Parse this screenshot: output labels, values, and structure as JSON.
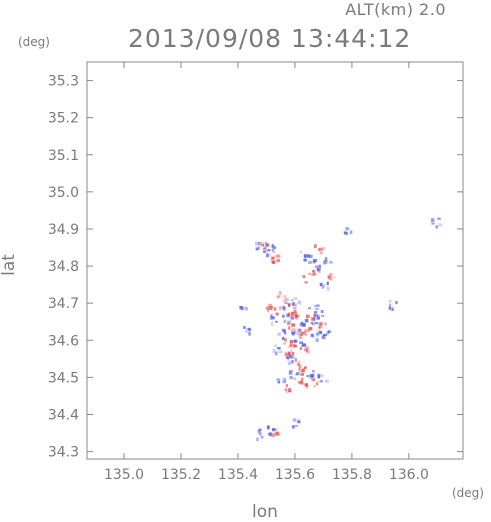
{
  "header": {
    "altitude_label": "ALT(km)  2.0",
    "timestamp": "2013/09/08 13:44:12"
  },
  "axes": {
    "lat_unit": "(deg)",
    "lon_unit": "(deg)",
    "xlabel": "lon",
    "ylabel": "lat"
  },
  "chart_data": {
    "type": "heatmap",
    "xlabel": "lon",
    "ylabel": "lat",
    "xlim": [
      134.87,
      136.19
    ],
    "ylim": [
      34.28,
      35.35
    ],
    "x_ticks": [
      "135.0",
      "135.2",
      "135.4",
      "135.6",
      "135.8",
      "136.0"
    ],
    "y_ticks": [
      "34.3",
      "34.4",
      "34.5",
      "34.6",
      "34.7",
      "34.8",
      "34.9",
      "35.0",
      "35.1",
      "35.2",
      "35.3"
    ],
    "colors": {
      "positive": "#e84a4a",
      "negative": "#4a5ae8",
      "axis": "#888888"
    },
    "points": [
      {
        "x": 135.47,
        "y": 34.855,
        "s": -1
      },
      {
        "x": 135.49,
        "y": 34.86,
        "s": 1
      },
      {
        "x": 135.51,
        "y": 34.85,
        "s": -1
      },
      {
        "x": 135.52,
        "y": 34.83,
        "s": 1
      },
      {
        "x": 135.53,
        "y": 34.82,
        "s": 1
      },
      {
        "x": 135.5,
        "y": 34.84,
        "s": -1
      },
      {
        "x": 135.63,
        "y": 34.83,
        "s": -1
      },
      {
        "x": 135.65,
        "y": 34.82,
        "s": -1
      },
      {
        "x": 135.67,
        "y": 34.79,
        "s": 1
      },
      {
        "x": 135.69,
        "y": 34.8,
        "s": -1
      },
      {
        "x": 135.71,
        "y": 34.82,
        "s": -1
      },
      {
        "x": 135.68,
        "y": 34.85,
        "s": 1
      },
      {
        "x": 135.72,
        "y": 34.77,
        "s": 1
      },
      {
        "x": 135.7,
        "y": 34.75,
        "s": -1
      },
      {
        "x": 135.64,
        "y": 34.77,
        "s": 1
      },
      {
        "x": 135.78,
        "y": 34.9,
        "s": -1
      },
      {
        "x": 135.55,
        "y": 34.72,
        "s": 1
      },
      {
        "x": 135.56,
        "y": 34.7,
        "s": -1
      },
      {
        "x": 135.54,
        "y": 34.68,
        "s": 1
      },
      {
        "x": 135.57,
        "y": 34.66,
        "s": -1
      },
      {
        "x": 135.59,
        "y": 34.67,
        "s": 1
      },
      {
        "x": 135.61,
        "y": 34.66,
        "s": 1
      },
      {
        "x": 135.63,
        "y": 34.65,
        "s": -1
      },
      {
        "x": 135.65,
        "y": 34.66,
        "s": 1
      },
      {
        "x": 135.67,
        "y": 34.65,
        "s": -1
      },
      {
        "x": 135.69,
        "y": 34.64,
        "s": 1
      },
      {
        "x": 135.58,
        "y": 34.64,
        "s": 1
      },
      {
        "x": 135.6,
        "y": 34.63,
        "s": -1
      },
      {
        "x": 135.62,
        "y": 34.62,
        "s": 1
      },
      {
        "x": 135.64,
        "y": 34.63,
        "s": 1
      },
      {
        "x": 135.66,
        "y": 34.61,
        "s": -1
      },
      {
        "x": 135.55,
        "y": 34.62,
        "s": -1
      },
      {
        "x": 135.57,
        "y": 34.6,
        "s": 1
      },
      {
        "x": 135.59,
        "y": 34.58,
        "s": 1
      },
      {
        "x": 135.61,
        "y": 34.59,
        "s": -1
      },
      {
        "x": 135.63,
        "y": 34.58,
        "s": 1
      },
      {
        "x": 135.56,
        "y": 34.56,
        "s": 1
      },
      {
        "x": 135.58,
        "y": 34.55,
        "s": -1
      },
      {
        "x": 135.6,
        "y": 34.54,
        "s": 1
      },
      {
        "x": 135.62,
        "y": 34.53,
        "s": 1
      },
      {
        "x": 135.59,
        "y": 34.51,
        "s": -1
      },
      {
        "x": 135.61,
        "y": 34.5,
        "s": 1
      },
      {
        "x": 135.63,
        "y": 34.49,
        "s": 1
      },
      {
        "x": 135.65,
        "y": 34.51,
        "s": -1
      },
      {
        "x": 135.67,
        "y": 34.49,
        "s": 1
      },
      {
        "x": 135.69,
        "y": 34.5,
        "s": -1
      },
      {
        "x": 135.55,
        "y": 34.49,
        "s": -1
      },
      {
        "x": 135.57,
        "y": 34.47,
        "s": 1
      },
      {
        "x": 135.52,
        "y": 34.66,
        "s": -1
      },
      {
        "x": 135.51,
        "y": 34.69,
        "s": 1
      },
      {
        "x": 135.43,
        "y": 34.63,
        "s": -1
      },
      {
        "x": 135.41,
        "y": 34.69,
        "s": -1
      },
      {
        "x": 135.94,
        "y": 34.7,
        "s": -1
      },
      {
        "x": 136.09,
        "y": 34.92,
        "s": -1
      },
      {
        "x": 135.48,
        "y": 34.35,
        "s": -1
      },
      {
        "x": 135.51,
        "y": 34.36,
        "s": -1
      },
      {
        "x": 135.53,
        "y": 34.355,
        "s": 1
      },
      {
        "x": 135.6,
        "y": 34.38,
        "s": -1
      },
      {
        "x": 135.66,
        "y": 34.69,
        "s": -1
      },
      {
        "x": 135.68,
        "y": 34.67,
        "s": -1
      },
      {
        "x": 135.7,
        "y": 34.62,
        "s": -1
      },
      {
        "x": 135.53,
        "y": 34.58,
        "s": -1
      },
      {
        "x": 135.58,
        "y": 34.69,
        "s": 1
      },
      {
        "x": 135.6,
        "y": 34.71,
        "s": -1
      }
    ]
  }
}
